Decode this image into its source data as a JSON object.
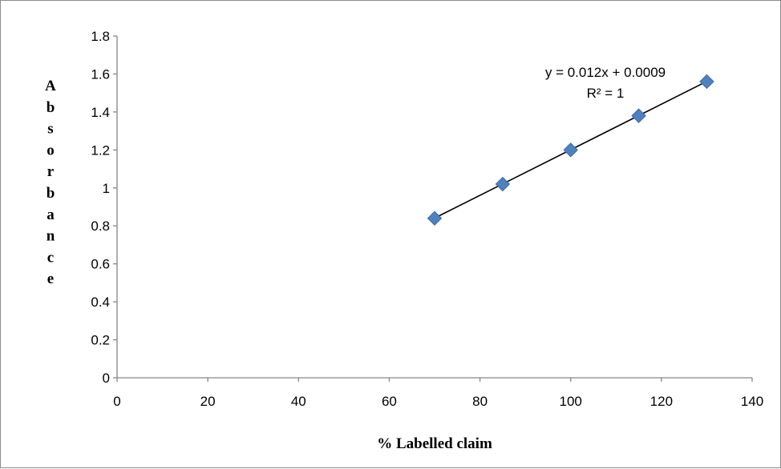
{
  "chart_data": {
    "type": "scatter",
    "title": "",
    "xlabel": "% Labelled claim",
    "ylabel": "Absorbance",
    "xlim": [
      0,
      140
    ],
    "ylim": [
      0,
      1.8
    ],
    "xticks": [
      "0",
      "20",
      "40",
      "60",
      "80",
      "100",
      "120",
      "140"
    ],
    "yticks": [
      "0",
      "0.2",
      "0.4",
      "0.6",
      "0.8",
      "1",
      "1.2",
      "1.4",
      "1.6",
      "1.8"
    ],
    "x": [
      70,
      85,
      100,
      115,
      130
    ],
    "y": [
      0.84,
      1.02,
      1.2,
      1.38,
      1.56
    ],
    "marker": "diamond",
    "marker_color": "#4f81bd",
    "trendline": {
      "type": "linear",
      "slope": 0.012,
      "intercept": 0.0009,
      "equation": "y = 0.012x + 0.0009",
      "r_squared": "R² = 1",
      "color": "#000000"
    },
    "grid": false,
    "legend": "none"
  }
}
